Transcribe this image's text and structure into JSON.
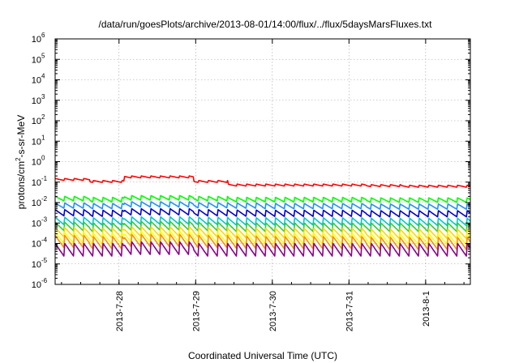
{
  "chart_data": {
    "type": "line",
    "title": "/data/run/goesPlots/archive/2013-08-01/14:00/flux/../flux/5daysMarsFluxes.txt",
    "xlabel": "Coordinated Universal Time (UTC)",
    "ylabel_prefix": "protons/cm",
    "ylabel_sup": "2",
    "ylabel_suffix": "-s-sr-MeV",
    "yscale": "log",
    "ylim": [
      1e-06,
      1000000.0
    ],
    "xlim": [
      "2013-07-27 04:00",
      "2013-08-01 14:00"
    ],
    "grid": true,
    "y_ticks": [
      {
        "base": "10",
        "exp": "-6"
      },
      {
        "base": "10",
        "exp": "-5"
      },
      {
        "base": "10",
        "exp": "-4"
      },
      {
        "base": "10",
        "exp": "-3"
      },
      {
        "base": "10",
        "exp": "-2"
      },
      {
        "base": "10",
        "exp": "-1"
      },
      {
        "base": "10",
        "exp": "0"
      },
      {
        "base": "10",
        "exp": "1"
      },
      {
        "base": "10",
        "exp": "2"
      },
      {
        "base": "10",
        "exp": "3"
      },
      {
        "base": "10",
        "exp": "4"
      },
      {
        "base": "10",
        "exp": "5"
      },
      {
        "base": "10",
        "exp": "6"
      }
    ],
    "x_ticks": [
      "2013-7-28",
      "2013-7-29",
      "2013-7-30",
      "2013-7-31",
      "2013-8-1"
    ],
    "series": [
      {
        "color": "#ff0000",
        "base": [
          0.15,
          0.12,
          0.2,
          0.2,
          0.12,
          0.08,
          0.08,
          0.08,
          0.08,
          0.075,
          0.07,
          0.07
        ],
        "amp": 1.6
      },
      {
        "color": "#00ff00",
        "base": [
          0.02,
          0.018,
          0.022,
          0.022,
          0.02,
          0.018,
          0.018,
          0.018,
          0.018,
          0.017,
          0.017,
          0.017
        ],
        "amp": 3.0
      },
      {
        "color": "#1e90ff",
        "base": [
          0.0095,
          0.009,
          0.011,
          0.011,
          0.01,
          0.0095,
          0.009,
          0.009,
          0.009,
          0.0085,
          0.0085,
          0.0085
        ],
        "amp": 3.6
      },
      {
        "color": "#0000cd",
        "base": [
          0.0045,
          0.0042,
          0.005,
          0.005,
          0.0045,
          0.0043,
          0.0042,
          0.0042,
          0.0042,
          0.004,
          0.004,
          0.004
        ],
        "amp": 4.5
      },
      {
        "color": "#00c8c8",
        "base": [
          0.0019,
          0.0018,
          0.002,
          0.002,
          0.0019,
          0.0018,
          0.0018,
          0.0018,
          0.0018,
          0.0017,
          0.0017,
          0.0017
        ],
        "amp": 6.0
      },
      {
        "color": "#32cd32",
        "base": [
          0.0011,
          0.001,
          0.0012,
          0.0012,
          0.0011,
          0.001,
          0.001,
          0.001,
          0.001,
          0.001,
          0.001,
          0.001
        ],
        "amp": 8.0
      },
      {
        "color": "#ffd700",
        "base": [
          0.0006,
          0.00055,
          0.00065,
          0.00065,
          0.0006,
          0.00055,
          0.00055,
          0.00055,
          0.00055,
          0.0005,
          0.0005,
          0.0005
        ],
        "amp": 10.0
      },
      {
        "color": "#ffff00",
        "base": [
          0.00035,
          0.00032,
          0.0004,
          0.0004,
          0.00035,
          0.00033,
          0.00032,
          0.00032,
          0.00032,
          0.0003,
          0.0003,
          0.0003
        ],
        "amp": 14.0
      },
      {
        "color": "#ff8c00",
        "base": [
          0.00025,
          0.00022,
          0.00028,
          0.00028,
          0.00025,
          0.00023,
          0.00022,
          0.00022,
          0.00022,
          0.0002,
          0.0002,
          0.0002
        ],
        "amp": 20.0
      },
      {
        "color": "#8b008b",
        "base": [
          0.0001,
          0.0001,
          0.00012,
          0.00012,
          0.0001,
          0.0001,
          0.0001,
          0.0001,
          0.0001,
          0.0001,
          0.0001,
          0.0001
        ],
        "amp": 22.0
      }
    ]
  }
}
